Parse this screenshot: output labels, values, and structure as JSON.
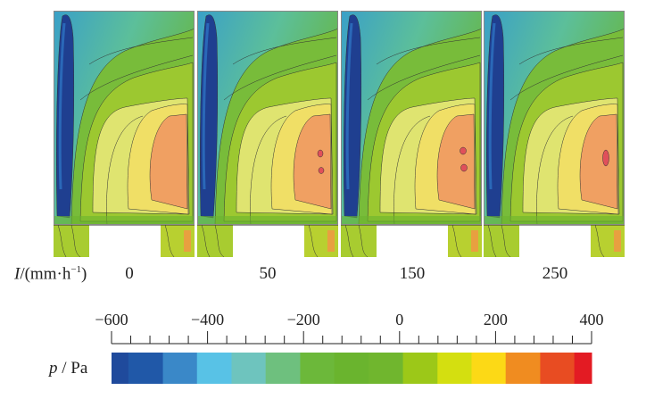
{
  "figure": {
    "x_label_var": "I",
    "x_label_unit": "/(mm·h",
    "x_label_exp": "−1",
    "x_label_close": ")",
    "colorbar_var": "p",
    "colorbar_unit": " / Pa"
  },
  "chart_data": {
    "type": "heatmap",
    "title": "",
    "panels": [
      {
        "label": "0",
        "high_pressure_spots": 0
      },
      {
        "label": "50",
        "high_pressure_spots": 2
      },
      {
        "label": "150",
        "high_pressure_spots": 2
      },
      {
        "label": "250",
        "high_pressure_spots": 1
      }
    ],
    "colorbar": {
      "range": [
        -600,
        400
      ],
      "tick_labels": [
        "−600",
        "−400",
        "−200",
        "0",
        "200",
        "400"
      ],
      "tick_values": [
        -600,
        -400,
        -200,
        0,
        200,
        400
      ],
      "minor_tick_step": 40,
      "levels": [
        -600,
        -565,
        -493,
        -422,
        -350,
        -279,
        -207,
        -136,
        -64,
        7,
        79,
        150,
        221,
        293,
        364,
        400
      ],
      "colors": [
        "#1f4a9c",
        "#2058a8",
        "#3a88c8",
        "#58c2e6",
        "#6ec4be",
        "#6ec07e",
        "#6cb83a",
        "#6ab42e",
        "#70b62e",
        "#9cc818",
        "#d4df10",
        "#fcd916",
        "#f08c20",
        "#e84c22",
        "#e31b23"
      ]
    }
  }
}
